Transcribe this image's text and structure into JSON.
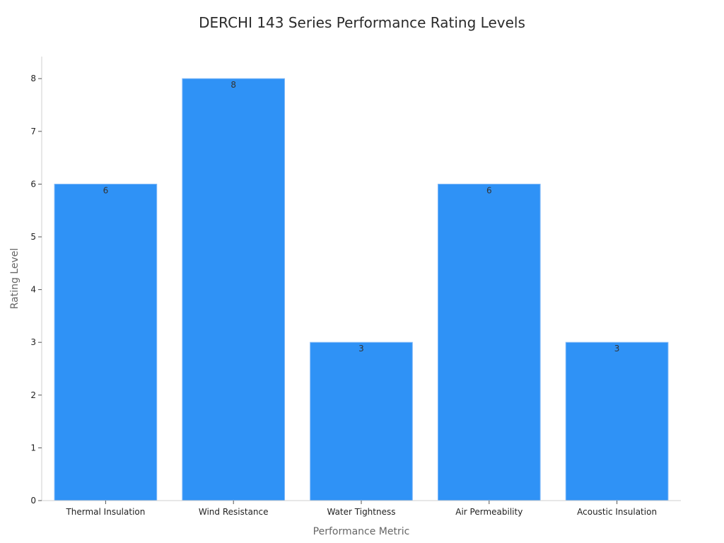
{
  "chart_data": {
    "type": "bar",
    "title": "DERCHI 143 Series Performance Rating Levels",
    "xlabel": "Performance Metric",
    "ylabel": "Rating Level",
    "categories": [
      "Thermal Insulation",
      "Wind Resistance",
      "Water Tightness",
      "Air Permeability",
      "Acoustic Insulation"
    ],
    "values": [
      6,
      8,
      3,
      6,
      3
    ],
    "ylim": [
      0,
      8.4
    ],
    "yticks": [
      0,
      1,
      2,
      3,
      4,
      5,
      6,
      7,
      8
    ],
    "bar_color": "#2f92f6",
    "grid": false,
    "data_labels": true
  }
}
